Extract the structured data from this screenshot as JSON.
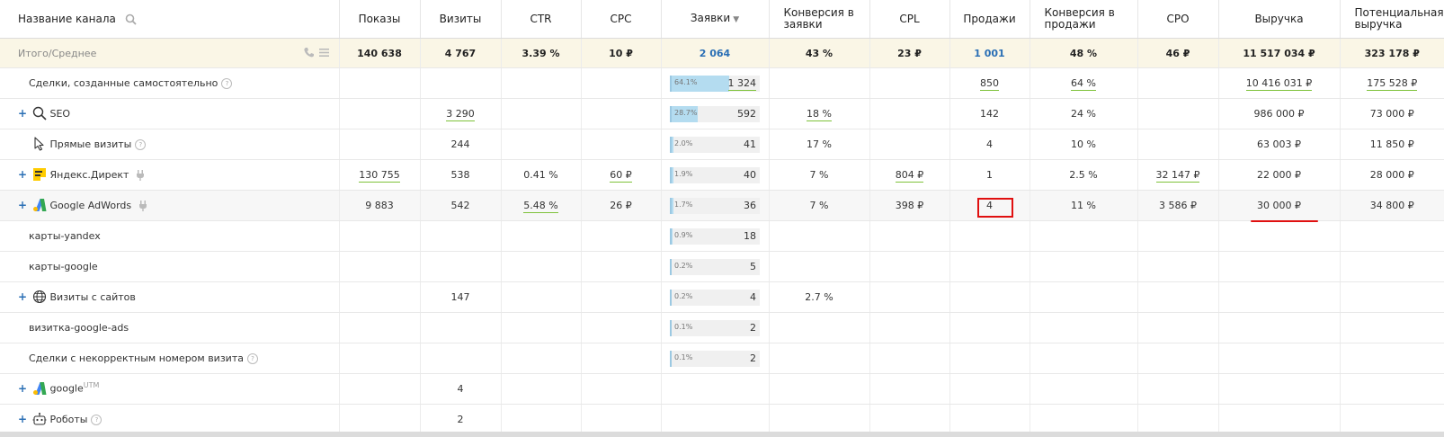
{
  "columns": [
    "Название канала",
    "Показы",
    "Визиты",
    "CTR",
    "CPC",
    "Заявки",
    "Конверсия в заявки",
    "CPL",
    "Продажи",
    "Конверсия в продажи",
    "CPO",
    "Выручка",
    "Потенциальная выручка"
  ],
  "sort_indicator": "▼",
  "total": {
    "name": "Итого/Среднее",
    "shows": "140 638",
    "visits": "4 767",
    "ctr": "3.39 %",
    "cpc": "10 ₽",
    "leads": "2 064",
    "conv_leads": "43 %",
    "cpl": "23 ₽",
    "sales": "1 001",
    "conv_sales": "48 %",
    "cpo": "46 ₽",
    "revenue": "11 517 034 ₽",
    "potential": "323 178 ₽"
  },
  "rows": [
    {
      "name": "Сделки, созданные самостоятельно",
      "help": "?",
      "leads_pct": "64.1%",
      "leads_frac": 0.641,
      "leads": "1 324",
      "sales": "850",
      "conv_sales": "64 %",
      "revenue": "10 416 031 ₽",
      "potential": "175 528 ₽"
    },
    {
      "name": "SEO",
      "plus": "+",
      "visits": "3 290",
      "leads_pct": "28.7%",
      "leads_frac": 0.287,
      "leads": "592",
      "conv_leads": "18 %",
      "sales": "142",
      "conv_sales": "24 %",
      "revenue": "986 000 ₽",
      "potential": "73 000 ₽"
    },
    {
      "name": "Прямые визиты",
      "help": "?",
      "visits": "244",
      "leads_pct": "2.0%",
      "leads_frac": 0.02,
      "leads": "41",
      "conv_leads": "17 %",
      "sales": "4",
      "conv_sales": "10 %",
      "revenue": "63 003 ₽",
      "potential": "11 850 ₽"
    },
    {
      "name": "Яндекс.Директ",
      "plus": "+",
      "shows": "130 755",
      "visits": "538",
      "ctr": "0.41 %",
      "cpc": "60 ₽",
      "leads_pct": "1.9%",
      "leads_frac": 0.019,
      "leads": "40",
      "conv_leads": "7 %",
      "cpl": "804 ₽",
      "sales": "1",
      "conv_sales": "2.5 %",
      "cpo": "32 147 ₽",
      "revenue": "22 000 ₽",
      "potential": "28 000 ₽"
    },
    {
      "name": "Google AdWords",
      "plus": "+",
      "shows": "9 883",
      "visits": "542",
      "ctr": "5.48 %",
      "cpc": "26 ₽",
      "leads_pct": "1.7%",
      "leads_frac": 0.017,
      "leads": "36",
      "conv_leads": "7 %",
      "cpl": "398 ₽",
      "sales": "4",
      "conv_sales": "11 %",
      "cpo": "3 586 ₽",
      "revenue": "30 000 ₽",
      "potential": "34 800 ₽"
    },
    {
      "name": "карты-yandex",
      "leads_pct": "0.9%",
      "leads_frac": 0.009,
      "leads": "18"
    },
    {
      "name": "карты-google",
      "leads_pct": "0.2%",
      "leads_frac": 0.002,
      "leads": "5"
    },
    {
      "name": "Визиты с сайтов",
      "plus": "+",
      "visits": "147",
      "leads_pct": "0.2%",
      "leads_frac": 0.002,
      "leads": "4",
      "conv_leads": "2.7 %"
    },
    {
      "name": "визитка-google-ads",
      "leads_pct": "0.1%",
      "leads_frac": 0.001,
      "leads": "2"
    },
    {
      "name": "Сделки с некорректным номером визита",
      "help": "?",
      "leads_pct": "0.1%",
      "leads_frac": 0.001,
      "leads": "2"
    },
    {
      "name": "google",
      "sup": "UTM",
      "plus": "+",
      "visits": "4"
    },
    {
      "name": "Роботы",
      "plus": "+",
      "help": "?",
      "visits": "2"
    }
  ],
  "colors": {
    "accent": "#2a6fb5",
    "bar": "#b4dcf0",
    "underline": "#7ec23a",
    "highlight": "#e01010",
    "total_bg": "#faf6e6"
  },
  "icons": {
    "search": "search-icon",
    "seo": "magnifier-icon",
    "direct": "cursor-icon",
    "yandex": "yandex-direct-icon",
    "google": "google-ads-icon",
    "web": "globe-icon",
    "robot": "robot-icon",
    "phone": "phone-icon",
    "menu": "menu-icon",
    "plug": "plug-icon"
  }
}
